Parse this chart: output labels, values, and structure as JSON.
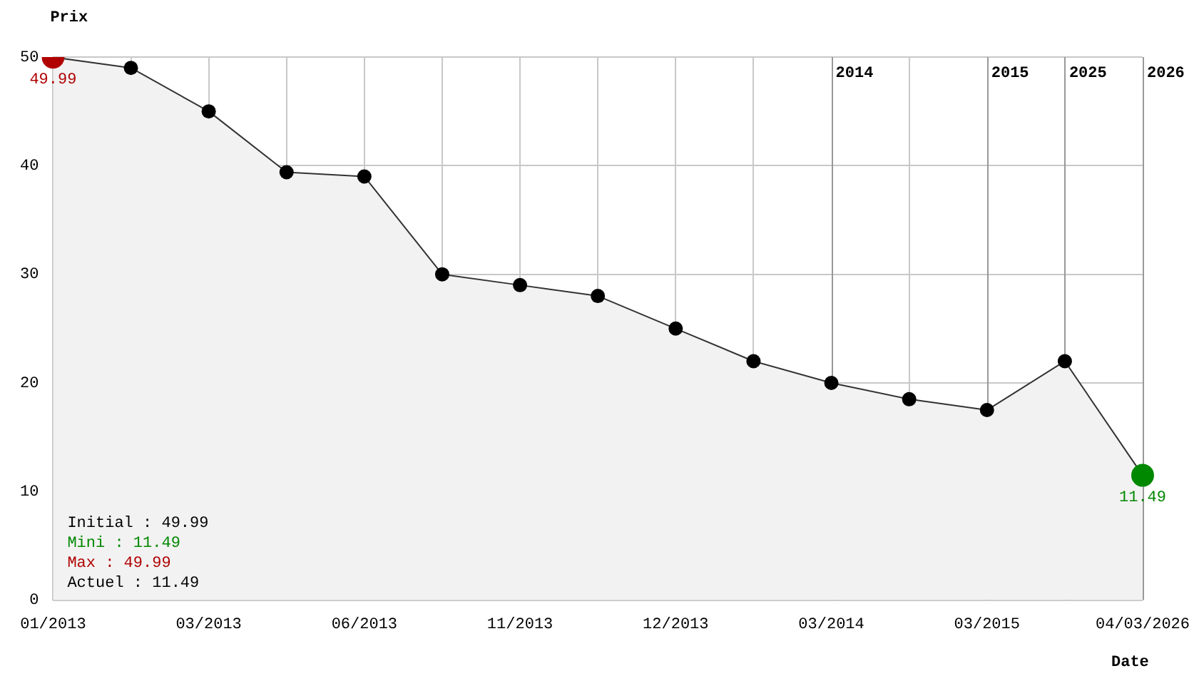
{
  "chart_data": {
    "type": "area",
    "xlabel": "Date",
    "ylabel": "Prix",
    "categories": [
      "01/2013",
      null,
      "03/2013",
      null,
      "06/2013",
      null,
      "11/2013",
      null,
      "12/2013",
      null,
      "03/2014",
      null,
      "03/2015",
      null,
      "04/03/2026"
    ],
    "series": [
      {
        "color": "#333333",
        "colors": [
          "#b00000",
          "#000000",
          "#000000",
          "#000000",
          "#000000",
          "#000000",
          "#000000",
          "#000000",
          "#000000",
          "#000000",
          "#000000",
          "#000000",
          "#000000",
          "#000000",
          "#008800"
        ],
        "values": [
          49.99,
          49,
          45,
          39.4,
          39,
          30,
          29,
          28,
          25,
          22,
          20,
          18.5,
          17.5,
          22,
          11.49
        ],
        "value_labels": [
          "49.99",
          null,
          null,
          null,
          null,
          null,
          null,
          null,
          null,
          null,
          null,
          null,
          null,
          null,
          "11.49"
        ]
      }
    ],
    "ylim": [
      0,
      50
    ],
    "yticks": [
      0,
      10,
      20,
      30,
      40,
      50
    ],
    "grid": true,
    "marker": "circle",
    "legend": false,
    "annotations": [
      "Initial : 49.99",
      "Mini : 11.49",
      "Max : 49.99",
      "Actuel : 11.49",
      "2014",
      "2015",
      "2025",
      "2026"
    ]
  }
}
